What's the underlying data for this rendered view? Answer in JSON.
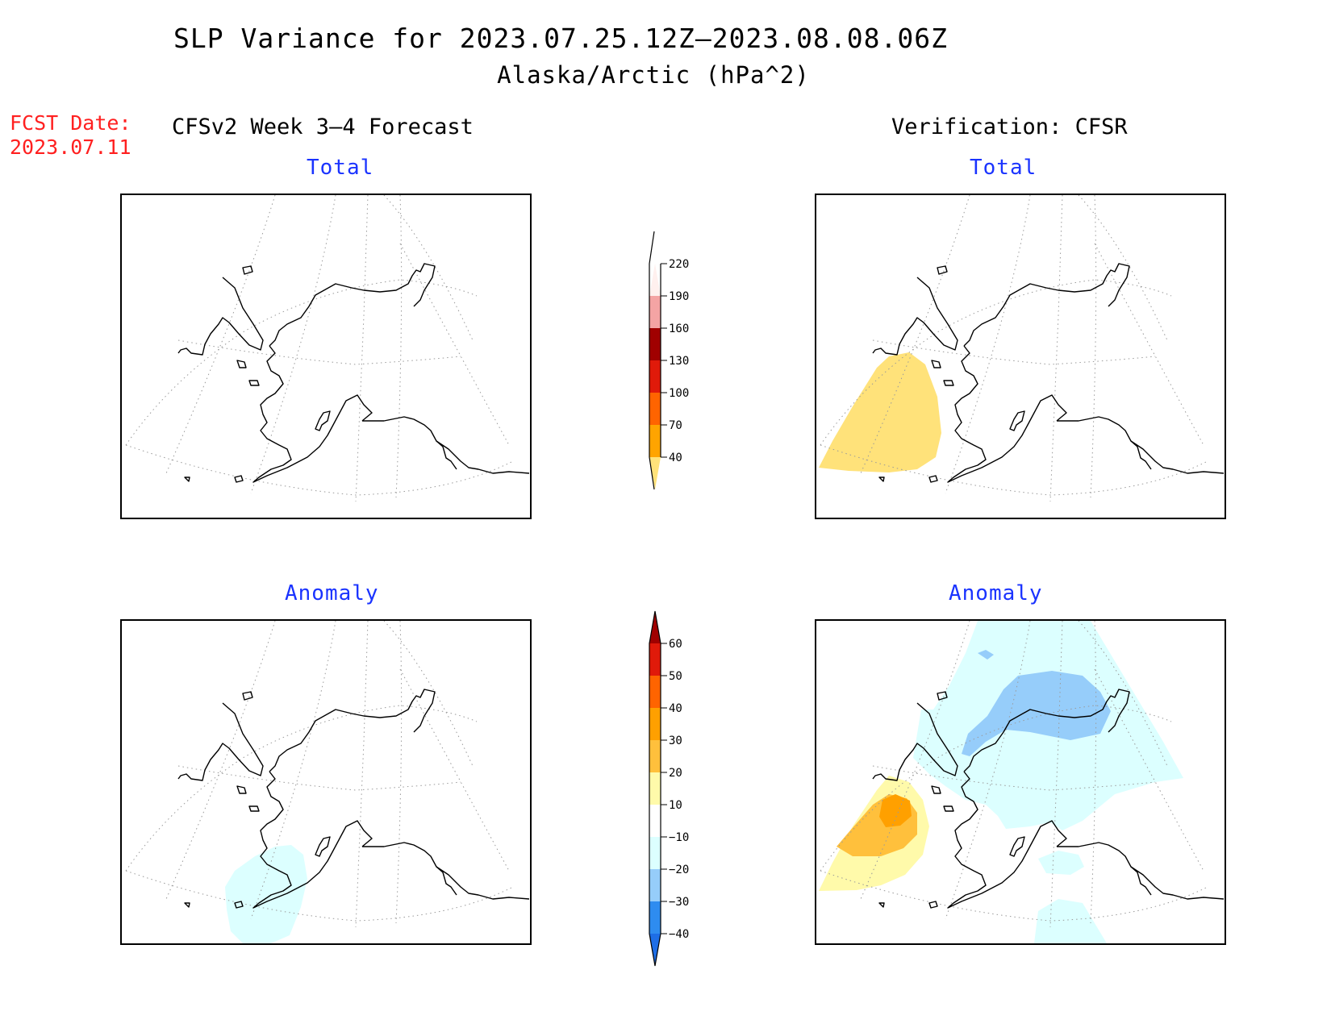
{
  "title": {
    "line1": "SLP Variance for 2023.07.25.12Z–2023.08.08.06Z",
    "line2": "Alaska/Arctic (hPa^2)"
  },
  "fcst": {
    "label": "FCST Date:",
    "date": "2023.07.11"
  },
  "columns": {
    "left": "CFSv2 Week 3–4 Forecast",
    "right": "Verification: CFSR"
  },
  "panels": {
    "forecast_total": {
      "label": "Total"
    },
    "forecast_anomaly": {
      "label": "Anomaly"
    },
    "verification_total": {
      "label": "Total"
    },
    "verification_anomaly": {
      "label": "Anomaly"
    }
  },
  "colorbars": {
    "total": {
      "ticks": [
        "40",
        "70",
        "100",
        "130",
        "160",
        "190",
        "220"
      ],
      "colors": [
        "#ffe27a",
        "#ffa400",
        "#ff6400",
        "#e01a0a",
        "#a00000",
        "#f4a4a4",
        "#fff0ee"
      ]
    },
    "anomaly": {
      "ticks": [
        "−40",
        "−30",
        "−20",
        "−10",
        "10",
        "20",
        "30",
        "40",
        "50",
        "60"
      ],
      "colors": [
        "#1e6ee6",
        "#2e8cf0",
        "#96cdfa",
        "#dcffff",
        "#ffffff",
        "#fffaaa",
        "#ffc03c",
        "#ffa000",
        "#ff6400",
        "#e01a0a",
        "#a00000"
      ]
    }
  },
  "map_colors": {
    "total_40_70": "#ffe27a",
    "anom_10_20": "#fffaaa",
    "anom_20_30": "#ffc03c",
    "anom_30_40": "#ffa000",
    "anom_m10_m20": "#dcffff",
    "anom_m20_m30": "#96cdfa"
  }
}
